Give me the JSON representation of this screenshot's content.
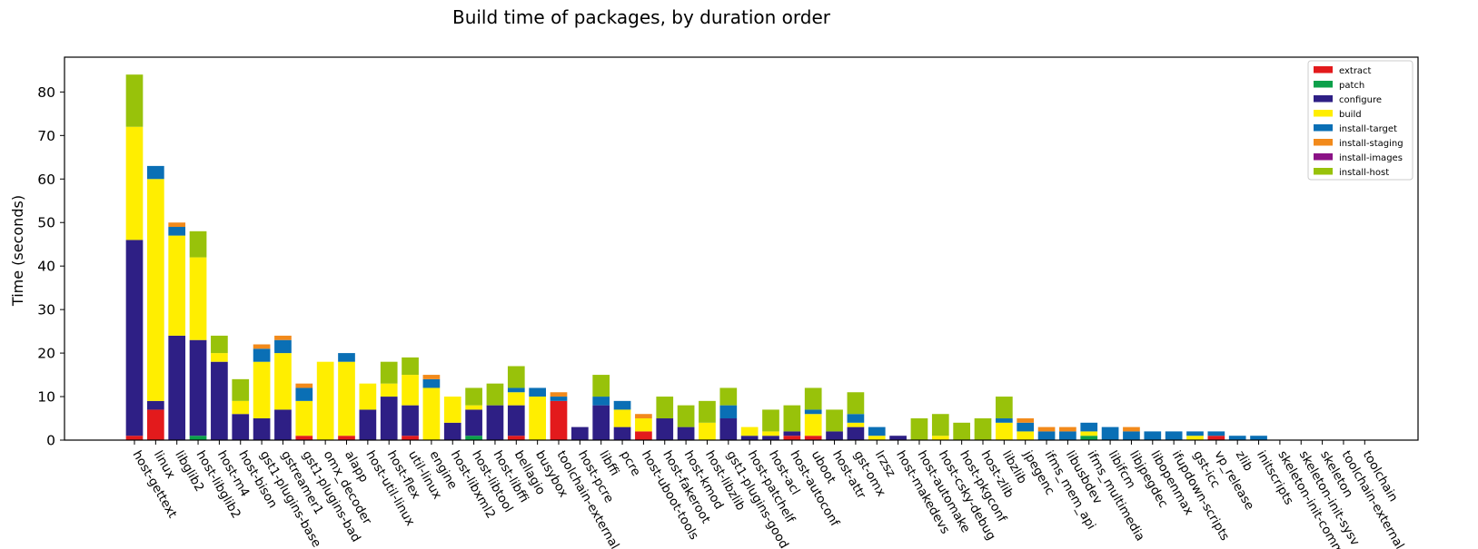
{
  "chart_data": {
    "type": "bar",
    "stacked": true,
    "title": "Build time of packages, by duration order",
    "xlabel": "",
    "ylabel": "Time (seconds)",
    "ylim": [
      0,
      88
    ],
    "yticks": [
      0,
      10,
      20,
      30,
      40,
      50,
      60,
      70,
      80
    ],
    "grid": false,
    "legend_position": "top-right",
    "categories": [
      "host-gettext",
      "linux",
      "libglib2",
      "host-libglib2",
      "host-m4",
      "host-bison",
      "gst1-plugins-base",
      "gstreamer1",
      "gst1-plugins-bad",
      "omx_decoder",
      "alapp",
      "host-util-linux",
      "host-flex",
      "util-linux",
      "engine",
      "host-libxml2",
      "host-libtool",
      "host-libffi",
      "bellagio",
      "busybox",
      "toolchain-external",
      "host-pcre",
      "libffi",
      "pcre",
      "host-uboot-tools",
      "host-fakeroot",
      "host-kmod",
      "host-libzlib",
      "gst1-plugins-good",
      "host-patchelf",
      "host-acl",
      "host-autoconf",
      "uboot",
      "host-attr",
      "gst-omx",
      "lrzsz",
      "host-makedevs",
      "host-automake",
      "host-csky-debug",
      "host-pkgconf",
      "host-zlib",
      "libzlib",
      "jpegenc",
      "ifms_mem_api",
      "libusbdev",
      "ifms_multimedia",
      "libifcm",
      "libjpegdec",
      "libopenmax",
      "ifupdown-scripts",
      "gst-icc",
      "vp_release",
      "zlib",
      "initscripts",
      "skeleton-init-common",
      "skeleton-init-sysv",
      "skeleton",
      "toolchain-external",
      "toolchain"
    ],
    "series": [
      {
        "name": "extract",
        "color": "#e31a1c",
        "values": [
          1,
          7,
          0,
          0,
          0,
          0,
          0,
          0,
          1,
          0,
          1,
          0,
          0,
          1,
          0,
          0,
          0,
          0,
          1,
          0,
          9,
          0,
          0,
          0,
          2,
          0,
          0,
          0,
          0,
          0,
          0,
          1,
          1,
          0,
          0,
          0,
          0,
          0,
          0,
          0,
          0,
          0,
          0,
          0,
          0,
          0,
          0,
          0,
          0,
          0,
          0,
          1,
          0,
          0,
          0,
          0,
          0,
          0,
          0
        ]
      },
      {
        "name": "patch",
        "color": "#0ca04a",
        "values": [
          0,
          0,
          0,
          1,
          0,
          0,
          0,
          0,
          0,
          0,
          0,
          0,
          0,
          0,
          0,
          0,
          1,
          0,
          0,
          0,
          0,
          0,
          0,
          0,
          0,
          0,
          0,
          0,
          0,
          0,
          0,
          0,
          0,
          0,
          0,
          0,
          0,
          0,
          0,
          0,
          0,
          0,
          0,
          0,
          0,
          1,
          0,
          0,
          0,
          0,
          0,
          0,
          0,
          0,
          0,
          0,
          0,
          0,
          0
        ]
      },
      {
        "name": "configure",
        "color": "#2e1f85",
        "values": [
          45,
          2,
          24,
          22,
          18,
          6,
          5,
          7,
          0,
          0,
          0,
          7,
          10,
          7,
          0,
          4,
          6,
          8,
          7,
          0,
          0,
          3,
          8,
          3,
          0,
          5,
          3,
          0,
          5,
          1,
          1,
          1,
          0,
          2,
          3,
          0,
          1,
          0,
          0,
          0,
          0,
          0,
          0,
          0,
          0,
          0,
          0,
          0,
          0,
          0,
          0,
          0,
          0,
          0,
          0,
          0,
          0,
          0,
          0
        ]
      },
      {
        "name": "build",
        "color": "#ffee00",
        "values": [
          26,
          51,
          23,
          19,
          2,
          3,
          13,
          13,
          8,
          18,
          17,
          6,
          3,
          7,
          12,
          6,
          1,
          0,
          3,
          10,
          0,
          0,
          0,
          4,
          3,
          0,
          0,
          4,
          0,
          2,
          1,
          0,
          5,
          0,
          1,
          1,
          0,
          0,
          1,
          0,
          0,
          4,
          2,
          0,
          0,
          1,
          0,
          0,
          0,
          0,
          1,
          0,
          0,
          0,
          0,
          0,
          0,
          0,
          0
        ]
      },
      {
        "name": "install-target",
        "color": "#0a6fb5",
        "values": [
          0,
          3,
          2,
          0,
          0,
          0,
          3,
          3,
          3,
          0,
          2,
          0,
          0,
          0,
          2,
          0,
          0,
          0,
          1,
          2,
          1,
          0,
          2,
          2,
          0,
          0,
          0,
          0,
          3,
          0,
          0,
          0,
          1,
          0,
          2,
          2,
          0,
          0,
          0,
          0,
          0,
          1,
          2,
          2,
          2,
          2,
          3,
          2,
          2,
          2,
          1,
          1,
          1,
          1,
          0,
          0,
          0,
          0,
          0
        ]
      },
      {
        "name": "install-staging",
        "color": "#f28a1b",
        "values": [
          0,
          0,
          1,
          0,
          0,
          0,
          1,
          1,
          1,
          0,
          0,
          0,
          0,
          0,
          1,
          0,
          0,
          0,
          0,
          0,
          1,
          0,
          0,
          0,
          1,
          0,
          0,
          0,
          0,
          0,
          0,
          0,
          0,
          0,
          0,
          0,
          0,
          0,
          0,
          0,
          0,
          0,
          1,
          1,
          1,
          0,
          0,
          1,
          0,
          0,
          0,
          0,
          0,
          0,
          0,
          0,
          0,
          0,
          0
        ]
      },
      {
        "name": "install-images",
        "color": "#8b1286",
        "values": [
          0,
          0,
          0,
          0,
          0,
          0,
          0,
          0,
          0,
          0,
          0,
          0,
          0,
          0,
          0,
          0,
          0,
          0,
          0,
          0,
          0,
          0,
          0,
          0,
          0,
          0,
          0,
          0,
          0,
          0,
          0,
          0,
          0,
          0,
          0,
          0,
          0,
          0,
          0,
          0,
          0,
          0,
          0,
          0,
          0,
          0,
          0,
          0,
          0,
          0,
          0,
          0,
          0,
          0,
          0,
          0,
          0,
          0,
          0
        ]
      },
      {
        "name": "install-host",
        "color": "#98c20a",
        "values": [
          12,
          0,
          0,
          6,
          4,
          5,
          0,
          0,
          0,
          0,
          0,
          0,
          5,
          4,
          0,
          0,
          4,
          5,
          5,
          0,
          0,
          0,
          5,
          0,
          0,
          5,
          5,
          5,
          4,
          0,
          5,
          6,
          5,
          5,
          5,
          0,
          0,
          5,
          5,
          4,
          5,
          5,
          0,
          0,
          0,
          0,
          0,
          0,
          0,
          0,
          0,
          0,
          0,
          0,
          0,
          0,
          0,
          0,
          0
        ]
      }
    ]
  }
}
